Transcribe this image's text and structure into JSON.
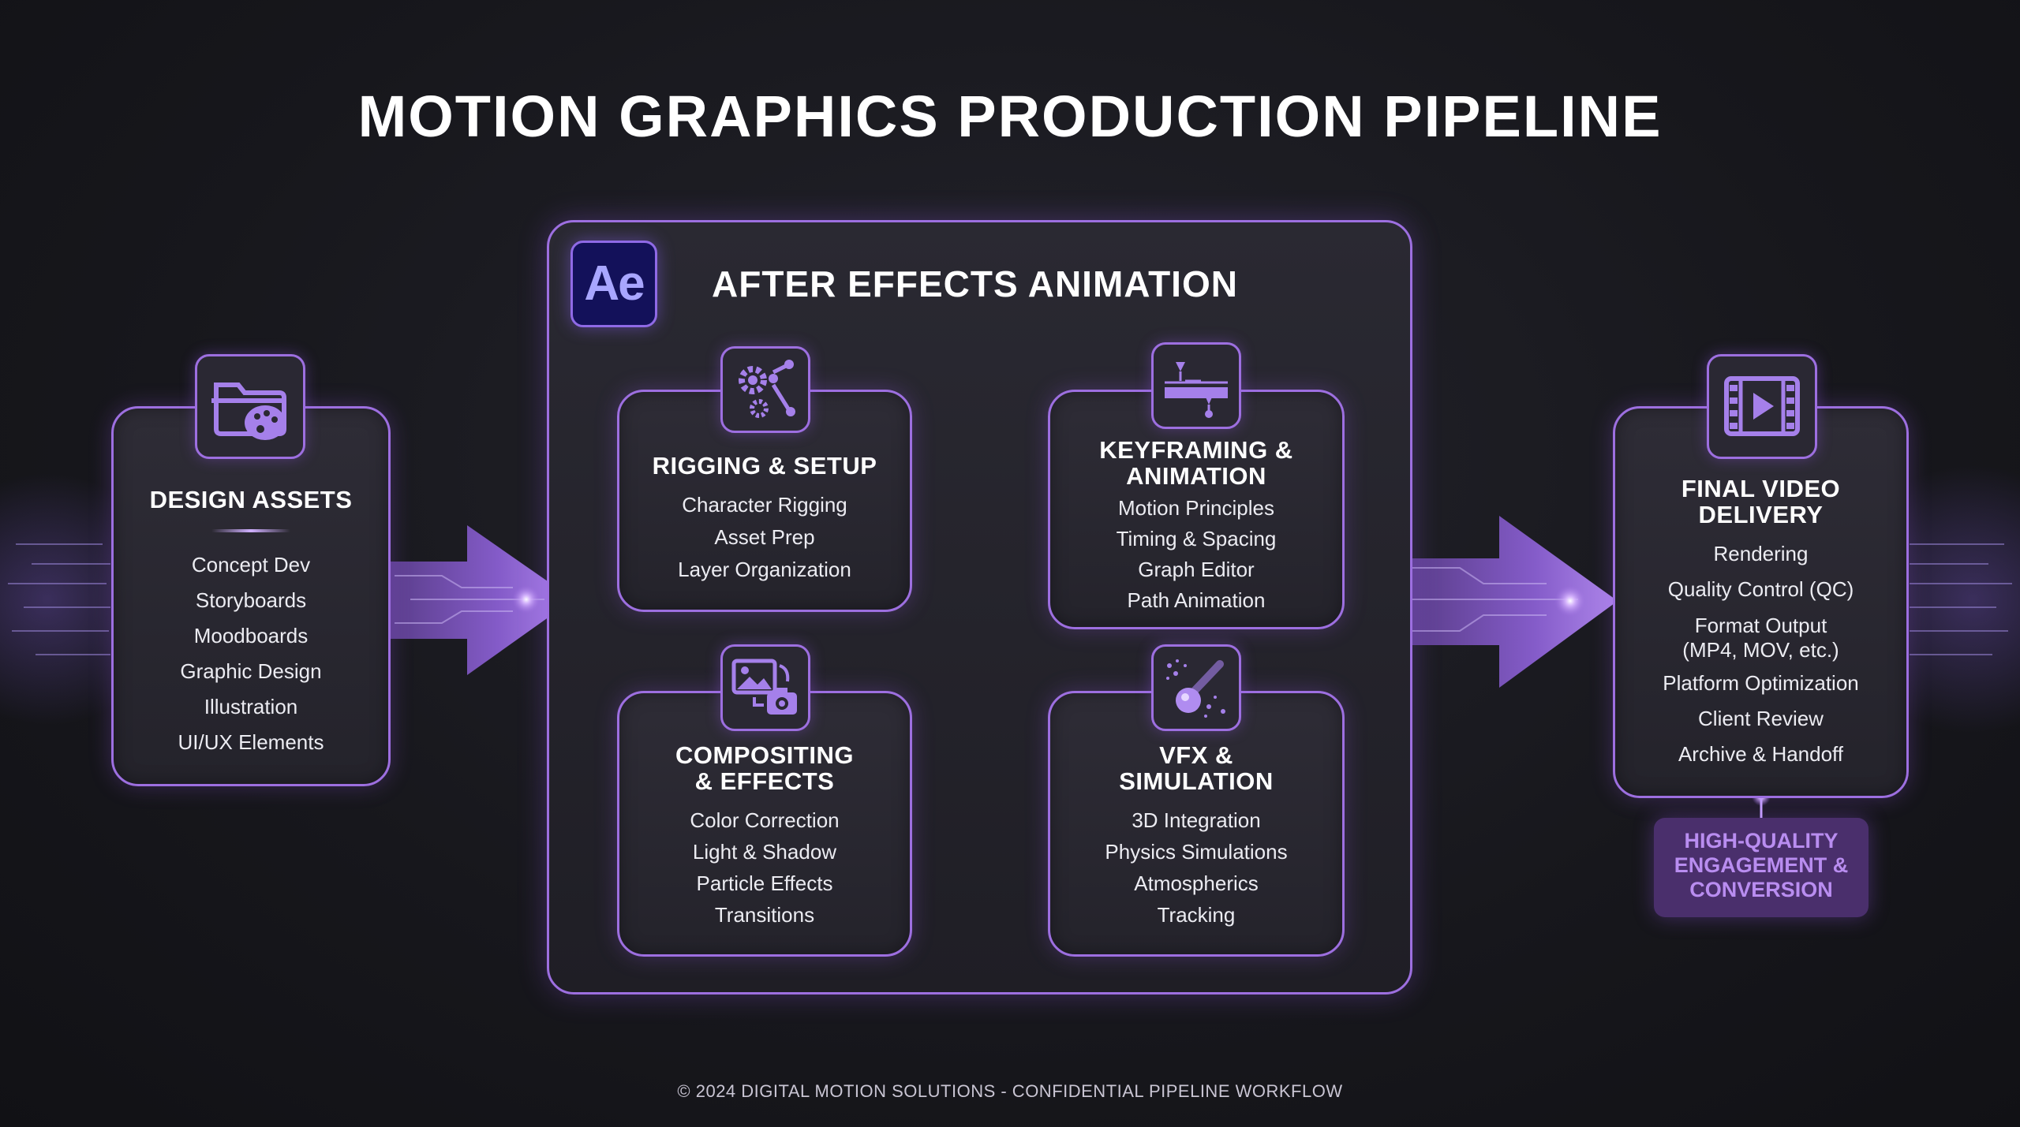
{
  "title": "MOTION GRAPHICS PRODUCTION PIPELINE",
  "footer": "© 2024 DIGITAL MOTION SOLUTIONS - CONFIDENTIAL PIPELINE WORKFLOW",
  "colors": {
    "accent": "#9d6fe0",
    "background": "#1a1a20",
    "badge_text": "#b98df0"
  },
  "design_assets": {
    "icon": "folder-palette-icon",
    "heading": "DESIGN ASSETS",
    "items": [
      "Concept Dev",
      "Storyboards",
      "Moodboards",
      "Graphic Design",
      "Illustration",
      "UI/UX Elements"
    ]
  },
  "after_effects": {
    "logo": "Ae",
    "title": "AFTER EFFECTS ANIMATION",
    "rigging": {
      "icon": "gears-rig-icon",
      "heading": "RIGGING & SETUP",
      "items": [
        "Character Rigging",
        "Asset Prep",
        "Layer Organization"
      ]
    },
    "keyframing": {
      "icon": "timeline-keyframe-icon",
      "heading_line1": "KEYFRAMING &",
      "heading_line2": "ANIMATION",
      "items": [
        "Motion Principles",
        "Timing & Spacing",
        "Graph Editor",
        "Path Animation"
      ]
    },
    "compositing": {
      "icon": "image-camera-icon",
      "heading_line1": "COMPOSITING",
      "heading_line2": "& EFFECTS",
      "items": [
        "Color Correction",
        "Light & Shadow",
        "Particle Effects",
        "Transitions"
      ]
    },
    "vfx": {
      "icon": "comet-particles-icon",
      "heading_line1": "VFX &",
      "heading_line2": "SIMULATION",
      "items": [
        "3D Integration",
        "Physics Simulations",
        "Atmospherics",
        "Tracking"
      ]
    }
  },
  "final_delivery": {
    "icon": "film-play-icon",
    "heading_line1": "FINAL VIDEO",
    "heading_line2": "DELIVERY",
    "items": [
      "Rendering",
      "Quality Control (QC)",
      "Format Output",
      "(MP4, MOV, etc.)",
      "Platform Optimization",
      "Client Review",
      "Archive & Handoff"
    ]
  },
  "badge": {
    "line1": "HIGH-QUALITY",
    "line2": "ENGAGEMENT &",
    "line3": "CONVERSION"
  }
}
